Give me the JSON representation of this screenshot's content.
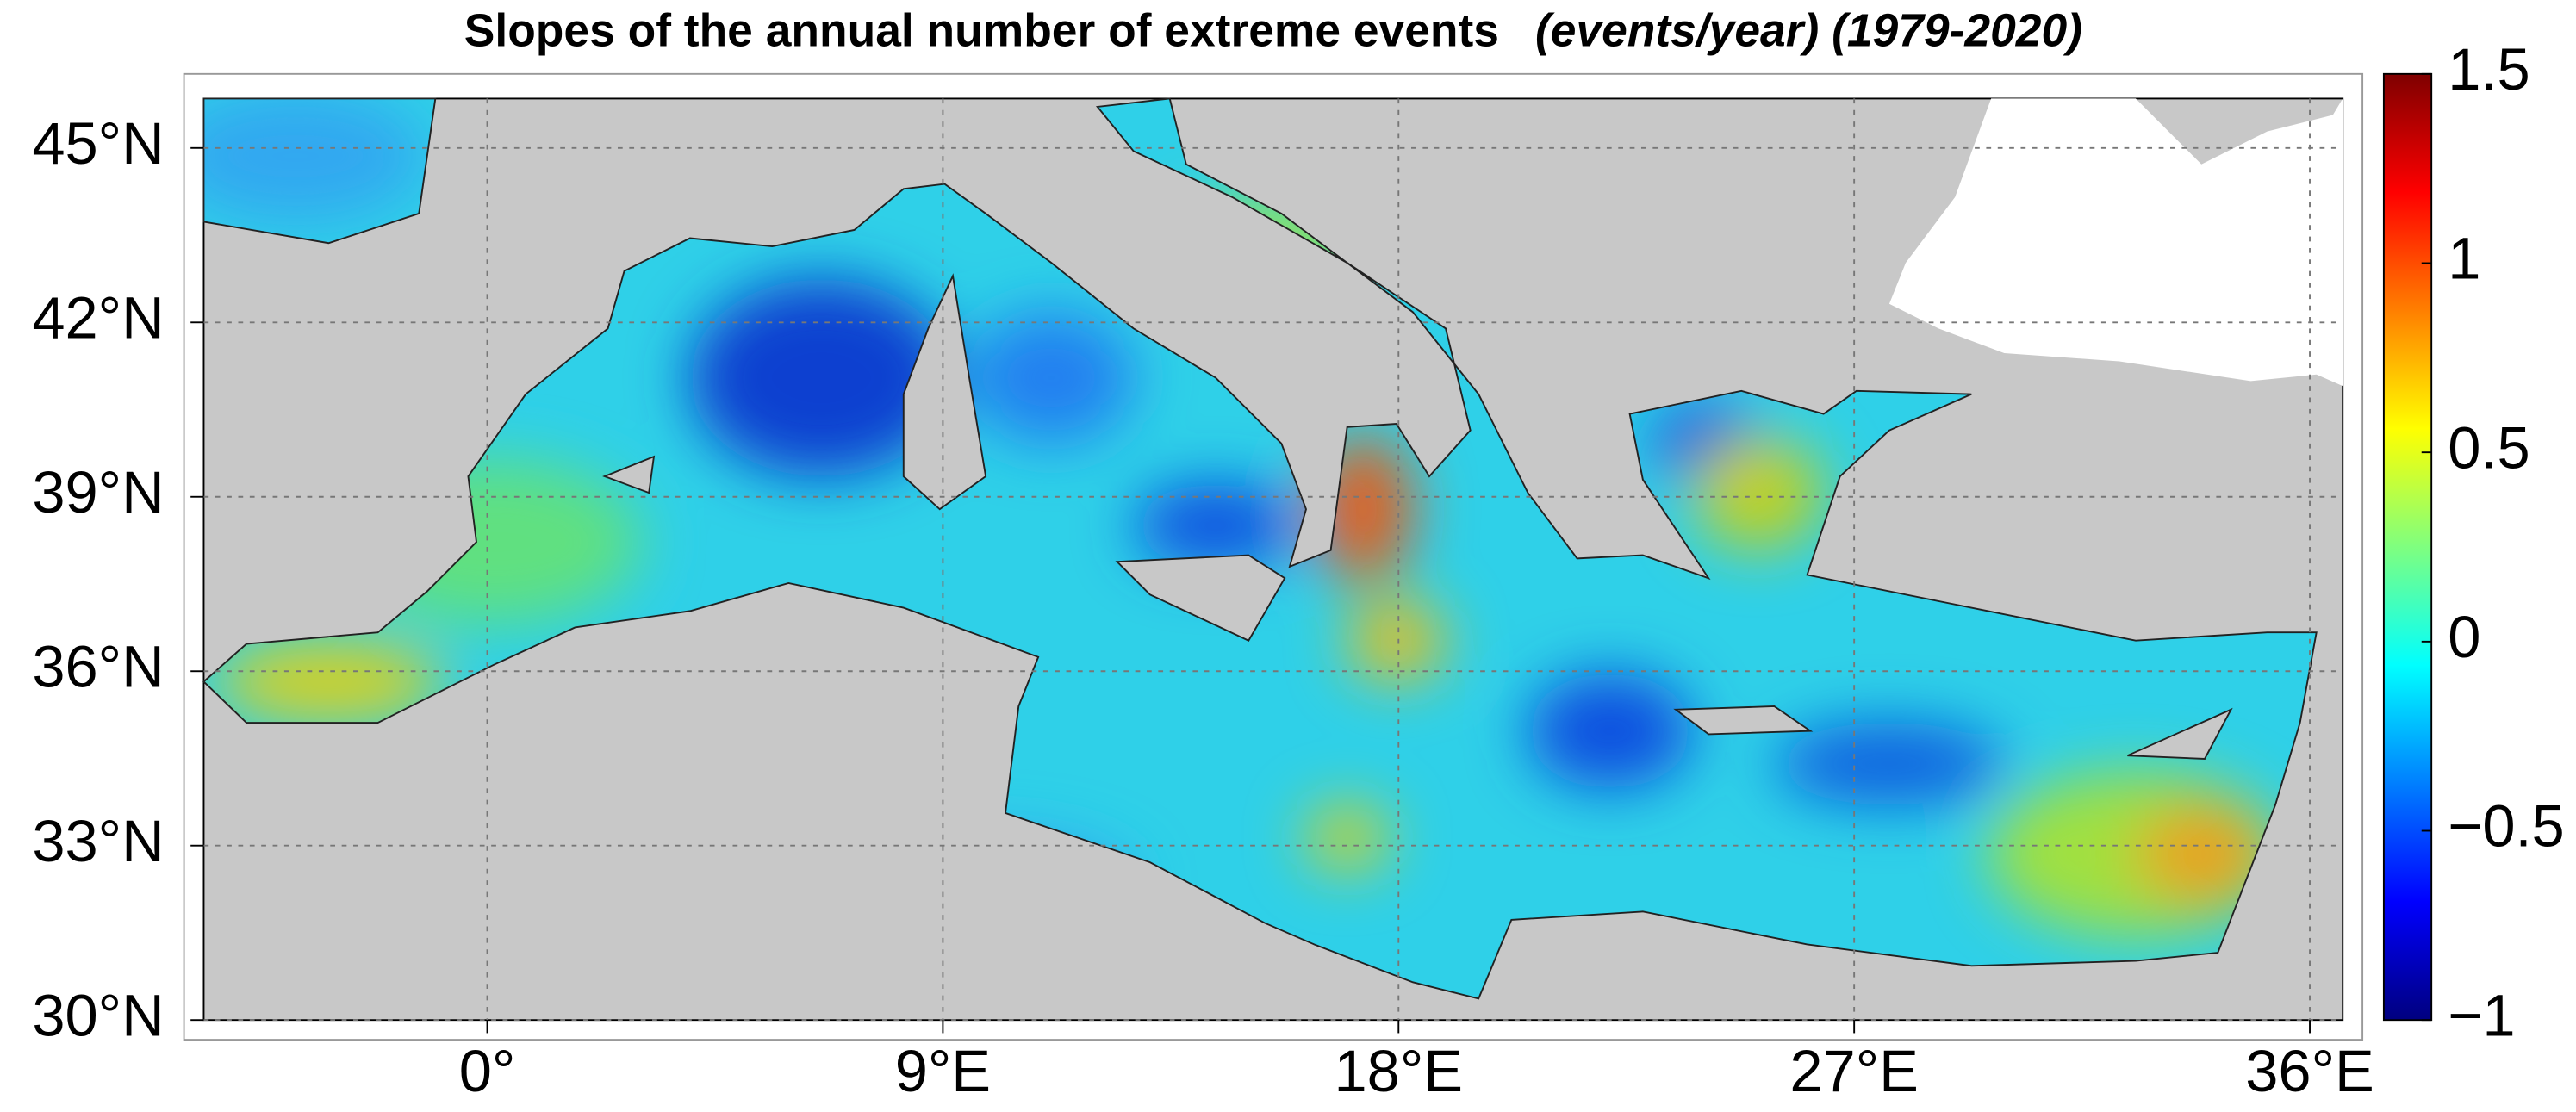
{
  "map": {
    "title": "Slopes of the annual number of extreme events",
    "title_units": "(events/year) (1979-2020)",
    "xlim": [
      -5.6,
      36.65
    ],
    "ylim": [
      30,
      45.85
    ],
    "xticks": [
      {
        "value": 0,
        "label": "0°"
      },
      {
        "value": 9,
        "label": "9°E"
      },
      {
        "value": 18,
        "label": "18°E"
      },
      {
        "value": 27,
        "label": "27°E"
      },
      {
        "value": 36,
        "label": "36°E"
      }
    ],
    "yticks": [
      {
        "value": 30,
        "label": "30°N"
      },
      {
        "value": 33,
        "label": "33°N"
      },
      {
        "value": 36,
        "label": "36°N"
      },
      {
        "value": 39,
        "label": "39°N"
      },
      {
        "value": 42,
        "label": "42°N"
      },
      {
        "value": 45,
        "label": "45°N"
      }
    ],
    "grid": true,
    "colorbar": {
      "lim": [
        -1,
        1.5
      ],
      "colormap": "jet",
      "ticks": [
        {
          "value": -1,
          "label": "−1"
        },
        {
          "value": -0.5,
          "label": "−0.5"
        },
        0,
        0.5,
        1,
        1.5
      ]
    }
  }
}
